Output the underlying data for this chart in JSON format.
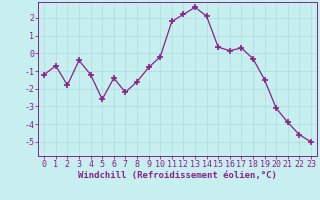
{
  "x": [
    0,
    1,
    2,
    3,
    4,
    5,
    6,
    7,
    8,
    9,
    10,
    11,
    12,
    13,
    14,
    15,
    16,
    17,
    18,
    19,
    20,
    21,
    22,
    23
  ],
  "y": [
    -1.2,
    -0.7,
    -1.8,
    -0.4,
    -1.2,
    -2.6,
    -1.4,
    -2.2,
    -1.6,
    -0.8,
    -0.2,
    1.8,
    2.2,
    2.6,
    2.1,
    0.35,
    0.15,
    0.3,
    -0.3,
    -1.5,
    -3.1,
    -3.9,
    -4.6,
    -5.0
  ],
  "line_color": "#882288",
  "marker": "+",
  "marker_size": 4,
  "marker_lw": 1.2,
  "bg_color": "#c8efef",
  "grid_color": "#aadddd",
  "spine_color": "#882288",
  "tick_color": "#882288",
  "label_color": "#882288",
  "xlabel": "Windchill (Refroidissement éolien,°C)",
  "ylim": [
    -5.8,
    2.9
  ],
  "xlim": [
    -0.5,
    23.5
  ],
  "yticks": [
    -5,
    -4,
    -3,
    -2,
    -1,
    0,
    1,
    2
  ],
  "xticks": [
    0,
    1,
    2,
    3,
    4,
    5,
    6,
    7,
    8,
    9,
    10,
    11,
    12,
    13,
    14,
    15,
    16,
    17,
    18,
    19,
    20,
    21,
    22,
    23
  ],
  "tick_fontsize": 6,
  "xlabel_fontsize": 6.5
}
